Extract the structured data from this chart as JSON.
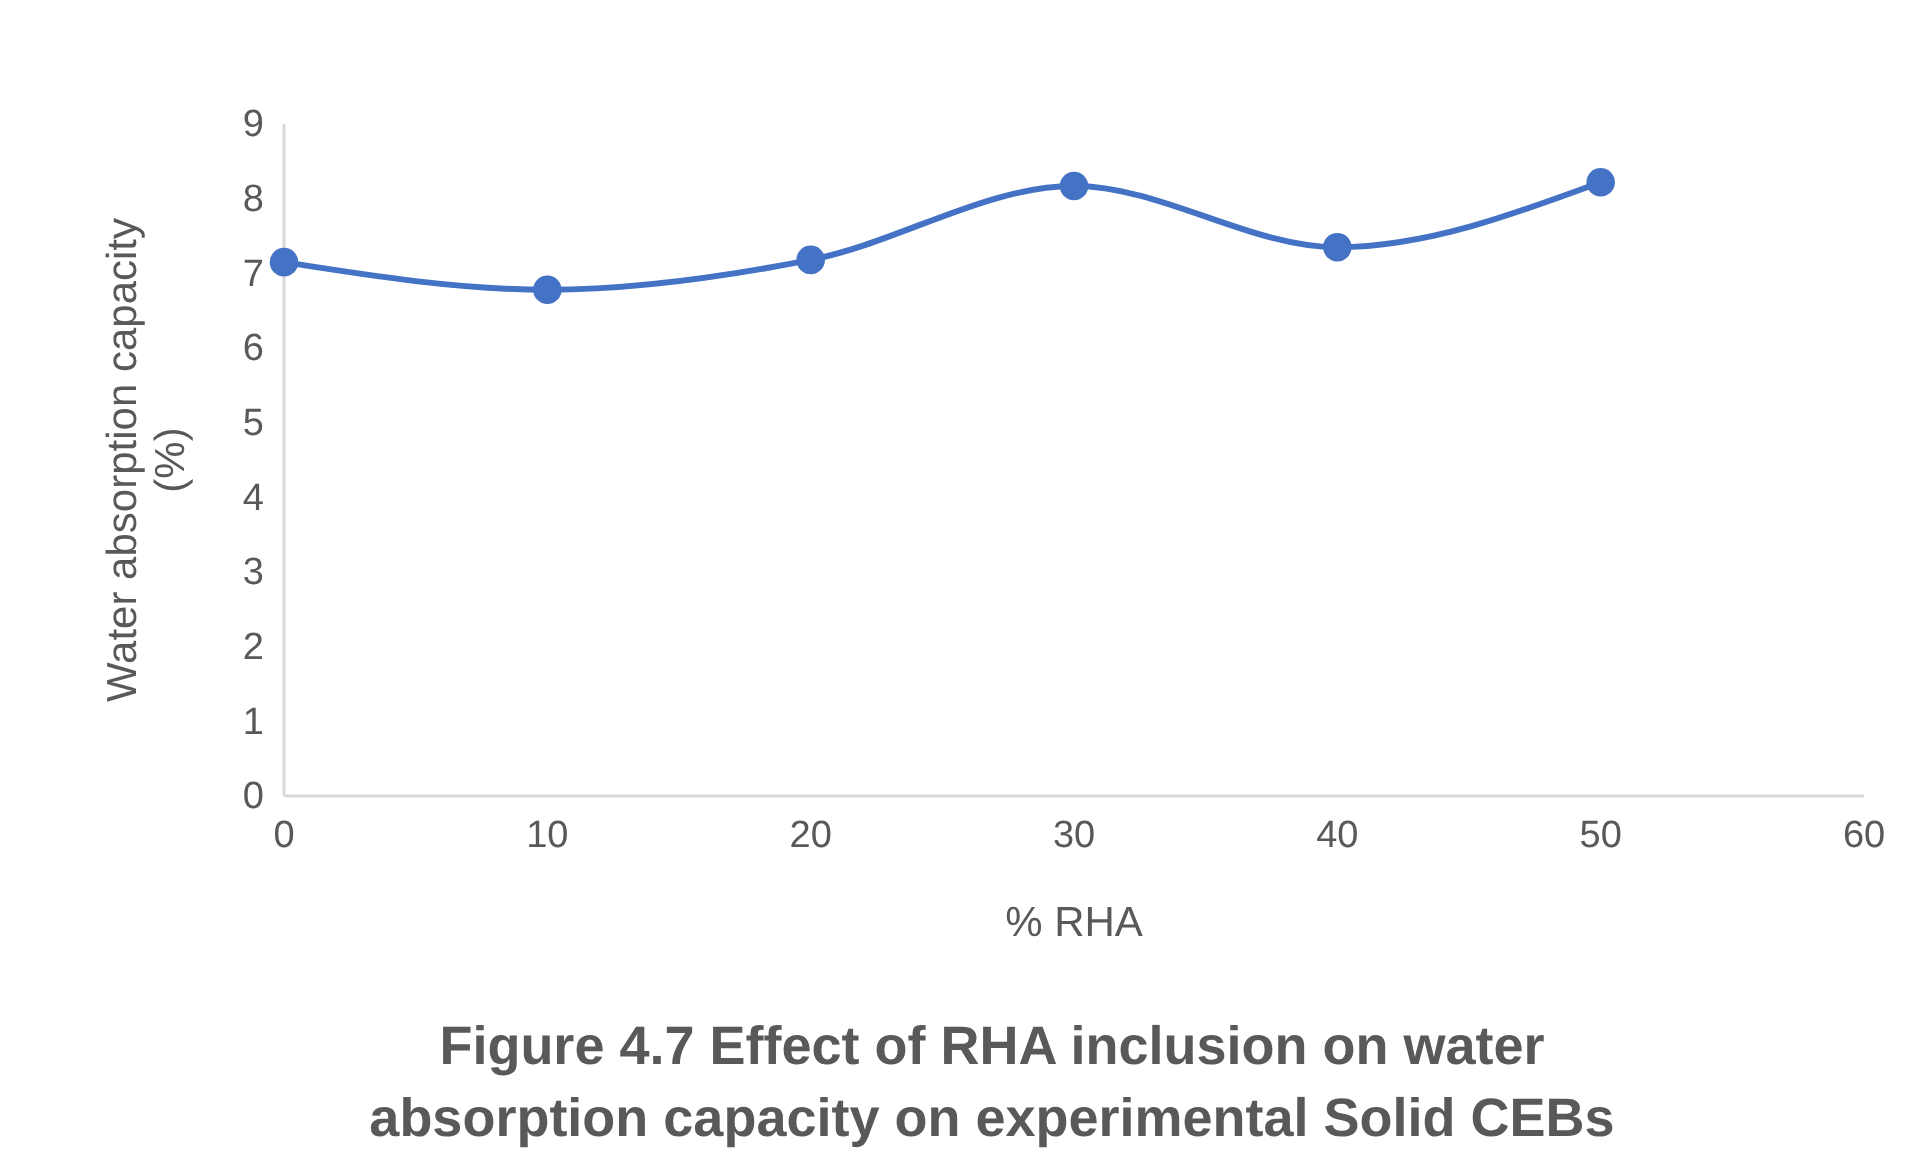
{
  "chart_data": {
    "type": "line",
    "title": "Figure 4.7 Effect of RHA inclusion on water absorption capacity on experimental Solid CEBs",
    "xlabel": "% RHA",
    "ylabel": "Water absorption capacity (%)",
    "x": [
      0,
      10,
      20,
      30,
      40,
      50
    ],
    "series": [
      {
        "color": "#4472c4",
        "values": [
          7.15,
          6.78,
          7.18,
          8.17,
          7.35,
          8.22
        ]
      }
    ],
    "xlim": [
      0,
      60
    ],
    "xticks": [
      0,
      10,
      20,
      30,
      40,
      50,
      60
    ],
    "ylim": [
      0,
      9
    ],
    "yticks": [
      0,
      1,
      2,
      3,
      4,
      5,
      6,
      7,
      8,
      9
    ],
    "marker": "circle",
    "line_style": "solid"
  }
}
